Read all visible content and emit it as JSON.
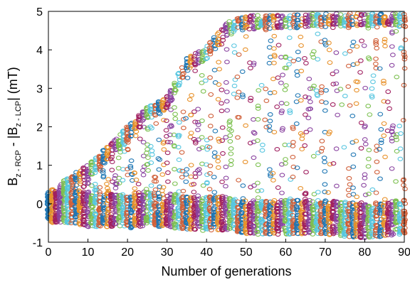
{
  "chart_data": {
    "type": "scatter",
    "xlabel": "Number of generations",
    "ylabel": {
      "base": "B",
      "sub1": "z - RCP",
      "mid": " - |B",
      "sub2": "z - LCP",
      "end": "| (mT)"
    },
    "xlim": [
      0,
      90
    ],
    "ylim": [
      -1,
      5
    ],
    "xticks": [
      "0",
      "10",
      "20",
      "30",
      "40",
      "50",
      "60",
      "70",
      "80",
      "90"
    ],
    "yticks": [
      "-1",
      "0",
      "1",
      "2",
      "3",
      "4",
      "5"
    ],
    "grid": false,
    "legend": "none",
    "marker": "open circle",
    "colors": [
      "#1f77b4",
      "#e8912a",
      "#a02060",
      "#8a44a0",
      "#7cc050",
      "#58c6e0",
      "#d0603a"
    ],
    "envelope": {
      "description_points_x": [
        0,
        5,
        10,
        15,
        20,
        25,
        30,
        35,
        40,
        45,
        50,
        60,
        70,
        80,
        90
      ],
      "upper_y": [
        0.3,
        0.7,
        1.0,
        1.5,
        2.0,
        2.5,
        2.8,
        3.8,
        4.1,
        4.7,
        4.9,
        4.9,
        4.95,
        4.95,
        4.95
      ],
      "lower_y": [
        -0.5,
        -0.5,
        -0.6,
        -0.6,
        -0.7,
        -0.6,
        -0.6,
        -0.7,
        -0.7,
        -0.7,
        -0.8,
        -0.8,
        -0.8,
        -0.9,
        -0.8
      ]
    },
    "points_per_generation": 45
  }
}
